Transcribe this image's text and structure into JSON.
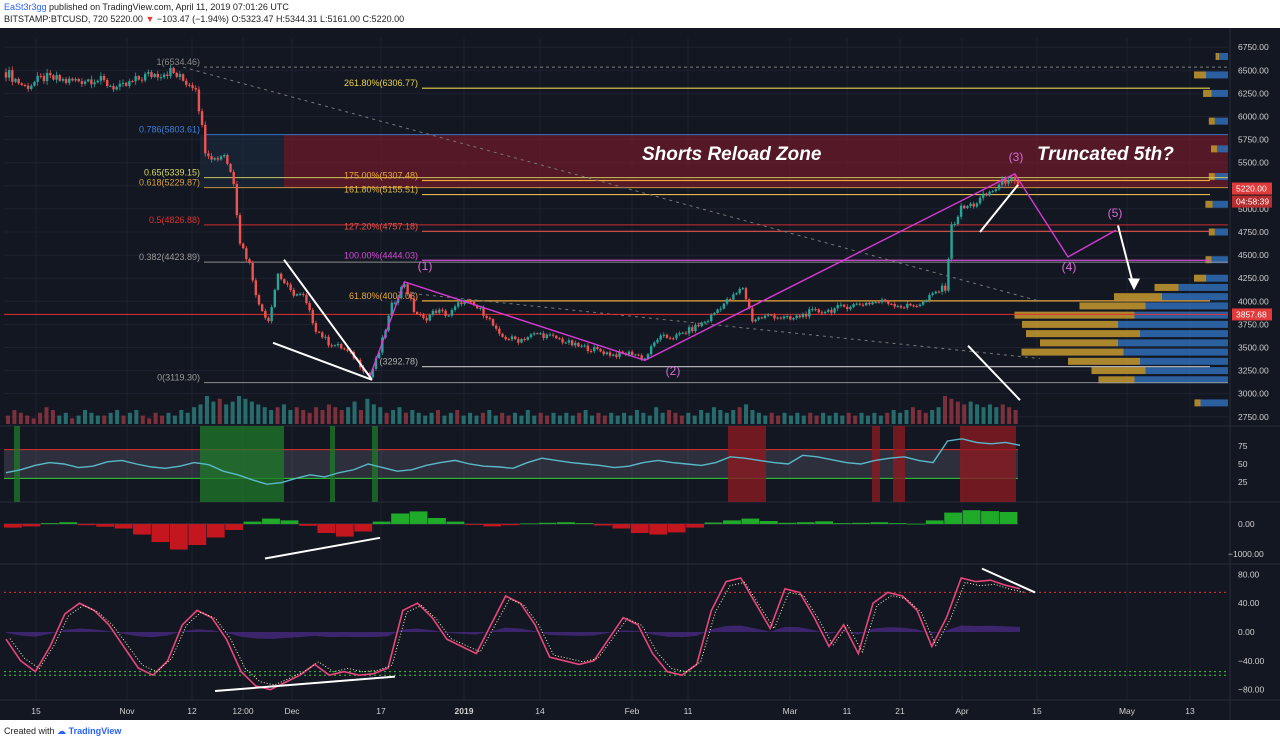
{
  "header": {
    "user": "EaSt3r3gg",
    "published": "published on TradingView.com, April 11, 2019 07:01:26 UTC",
    "symbol": "BITSTAMP:BTCUSD, 720",
    "last": "5220.00",
    "change": "−103.47 (−1.94%)",
    "ohlc": "O:5323.47 H:5344.31 L:5161.00 C:5220.00"
  },
  "footer": {
    "created_with": "Created with",
    "brand": "TradingView"
  },
  "chart_data": {
    "type": "line",
    "symbol": "BITSTAMP:BTCUSD",
    "timeframe": "720",
    "y_ticks": [
      2750,
      3000,
      3250,
      3500,
      3750,
      4000,
      4250,
      4500,
      4750,
      5000,
      5250,
      5500,
      5750,
      6000,
      6250,
      6500,
      6750
    ],
    "ylim": [
      2650,
      6850
    ],
    "x_ticks": [
      "15",
      "Nov",
      "12",
      "12:00",
      "Dec",
      "17",
      "2019",
      "14",
      "Feb",
      "11",
      "Mar",
      "11",
      "21",
      "Apr",
      "15",
      "May",
      "13"
    ],
    "price_labels": {
      "last": "5220.00",
      "countdown": "04:58:39",
      "level": "3857.68"
    },
    "price_path": [
      {
        "t": 0,
        "v": 6480
      },
      {
        "t": 3,
        "v": 6320
      },
      {
        "t": 6,
        "v": 6420
      },
      {
        "t": 10,
        "v": 6380
      },
      {
        "t": 14,
        "v": 6410
      },
      {
        "t": 18,
        "v": 6300
      },
      {
        "t": 22,
        "v": 6440
      },
      {
        "t": 26,
        "v": 6490
      },
      {
        "t": 28,
        "v": 6390
      },
      {
        "t": 30,
        "v": 6330
      },
      {
        "t": 31.5,
        "v": 5650
      },
      {
        "t": 33,
        "v": 5540
      },
      {
        "t": 34.5,
        "v": 5600
      },
      {
        "t": 36,
        "v": 5300
      },
      {
        "t": 37,
        "v": 4650
      },
      {
        "t": 38.5,
        "v": 4400
      },
      {
        "t": 40,
        "v": 3950
      },
      {
        "t": 41.5,
        "v": 3800
      },
      {
        "t": 43,
        "v": 4300
      },
      {
        "t": 45,
        "v": 4100
      },
      {
        "t": 47,
        "v": 4050
      },
      {
        "t": 49,
        "v": 3700
      },
      {
        "t": 51,
        "v": 3550
      },
      {
        "t": 53,
        "v": 3500
      },
      {
        "t": 55,
        "v": 3400
      },
      {
        "t": 57.5,
        "v": 3180
      },
      {
        "t": 59,
        "v": 3450
      },
      {
        "t": 61,
        "v": 3950
      },
      {
        "t": 63,
        "v": 4200
      },
      {
        "t": 64.5,
        "v": 3900
      },
      {
        "t": 66,
        "v": 3800
      },
      {
        "t": 68,
        "v": 3900
      },
      {
        "t": 70,
        "v": 3850
      },
      {
        "t": 72,
        "v": 4000
      },
      {
        "t": 74,
        "v": 3950
      },
      {
        "t": 76,
        "v": 3850
      },
      {
        "t": 78,
        "v": 3620
      },
      {
        "t": 81,
        "v": 3580
      },
      {
        "t": 84,
        "v": 3650
      },
      {
        "t": 87,
        "v": 3600
      },
      {
        "t": 90,
        "v": 3520
      },
      {
        "t": 93,
        "v": 3480
      },
      {
        "t": 96,
        "v": 3420
      },
      {
        "t": 99,
        "v": 3440
      },
      {
        "t": 101,
        "v": 3380
      },
      {
        "t": 103,
        "v": 3600
      },
      {
        "t": 106,
        "v": 3620
      },
      {
        "t": 109,
        "v": 3720
      },
      {
        "t": 111,
        "v": 3800
      },
      {
        "t": 113,
        "v": 3950
      },
      {
        "t": 115,
        "v": 4050
      },
      {
        "t": 116.5,
        "v": 4150
      },
      {
        "t": 118,
        "v": 3800
      },
      {
        "t": 121,
        "v": 3850
      },
      {
        "t": 124,
        "v": 3800
      },
      {
        "t": 127,
        "v": 3880
      },
      {
        "t": 130,
        "v": 3900
      },
      {
        "t": 133,
        "v": 3950
      },
      {
        "t": 136,
        "v": 3980
      },
      {
        "t": 139,
        "v": 4000
      },
      {
        "t": 142,
        "v": 3940
      },
      {
        "t": 145,
        "v": 3980
      },
      {
        "t": 147,
        "v": 4100
      },
      {
        "t": 148.5,
        "v": 4150
      },
      {
        "t": 149.5,
        "v": 4800
      },
      {
        "t": 151,
        "v": 5000
      },
      {
        "t": 153,
        "v": 5050
      },
      {
        "t": 155,
        "v": 5150
      },
      {
        "t": 157,
        "v": 5250
      },
      {
        "t": 158.5,
        "v": 5344
      },
      {
        "t": 160,
        "v": 5220
      }
    ],
    "volume": [
      0.3,
      0.5,
      0.4,
      0.3,
      0.2,
      0.4,
      0.6,
      0.5,
      0.3,
      0.4,
      0.2,
      0.3,
      0.5,
      0.4,
      0.3,
      0.3,
      0.4,
      0.5,
      0.3,
      0.4,
      0.5,
      0.3,
      0.2,
      0.4,
      0.3,
      0.4,
      0.3,
      0.5,
      0.4,
      0.6,
      0.7,
      1.0,
      0.8,
      0.9,
      0.7,
      0.8,
      1.0,
      0.9,
      0.8,
      0.7,
      0.6,
      0.5,
      0.6,
      0.7,
      0.5,
      0.6,
      0.5,
      0.4,
      0.6,
      0.5,
      0.7,
      0.6,
      0.5,
      0.6,
      0.8,
      0.5,
      0.9,
      0.7,
      0.6,
      0.4,
      0.5,
      0.6,
      0.4,
      0.5,
      0.4,
      0.3,
      0.4,
      0.5,
      0.3,
      0.4,
      0.5,
      0.3,
      0.4,
      0.3,
      0.4,
      0.5,
      0.3,
      0.4,
      0.3,
      0.4,
      0.3,
      0.5,
      0.3,
      0.4,
      0.3,
      0.4,
      0.3,
      0.4,
      0.3,
      0.4,
      0.5,
      0.3,
      0.4,
      0.3,
      0.4,
      0.3,
      0.4,
      0.3,
      0.5,
      0.4,
      0.3,
      0.6,
      0.4,
      0.5,
      0.4,
      0.3,
      0.4,
      0.3,
      0.5,
      0.4,
      0.6,
      0.5,
      0.4,
      0.5,
      0.6,
      0.7,
      0.5,
      0.4,
      0.3,
      0.4,
      0.3,
      0.4,
      0.3,
      0.4,
      0.3,
      0.4,
      0.3,
      0.4,
      0.3,
      0.4,
      0.3,
      0.4,
      0.3,
      0.4,
      0.3,
      0.4,
      0.3,
      0.4,
      0.5,
      0.4,
      0.5,
      0.6,
      0.5,
      0.4,
      0.5,
      0.6,
      1.0,
      0.9,
      0.8,
      0.7,
      0.8,
      0.7,
      0.6,
      0.7,
      0.6,
      0.7,
      0.6,
      0.5
    ],
    "fib_retracement_labels": [
      {
        "label": "1(6534.46)",
        "price": 6534.46
      },
      {
        "label": "0.786(5803.61)",
        "price": 5803.61
      },
      {
        "label": "0.65(5339.15)",
        "price": 5339.15
      },
      {
        "label": "0.618(5229.87)",
        "price": 5229.87
      },
      {
        "label": "0.5(4826.88)",
        "price": 4826.88
      },
      {
        "label": "0.382(4423.89)",
        "price": 4423.89
      },
      {
        "label": "0(3119.30)",
        "price": 3119.3
      }
    ],
    "fib_extension_labels": [
      {
        "label": "261.80%(6306.77)",
        "price": 6306.77
      },
      {
        "label": "175.00%(5307.48)",
        "price": 5307.48
      },
      {
        "label": "161.80%(5155.51)",
        "price": 5155.51
      },
      {
        "label": "127.20%(4757.18)",
        "price": 4757.18
      },
      {
        "label": "100.00%(4444.03)",
        "price": 4444.03
      },
      {
        "label": "61.80%(4004.05)",
        "price": 4004.05
      },
      {
        "label": "(3292.78)",
        "price": 3292.78
      }
    ],
    "annotations": {
      "zone_text": "Shorts  Reload Zone",
      "question_text": "Truncated 5th?",
      "waves": [
        "(1)",
        "(2)",
        "(3)",
        "(4)",
        "(5)"
      ]
    },
    "volume_profile": [
      {
        "p": 2900,
        "b": 0.25,
        "g": 0.05
      },
      {
        "p": 3150,
        "b": 0.85,
        "g": 0.3
      },
      {
        "p": 3250,
        "b": 0.75,
        "g": 0.45
      },
      {
        "p": 3350,
        "b": 0.8,
        "g": 0.6
      },
      {
        "p": 3450,
        "b": 0.95,
        "g": 0.85
      },
      {
        "p": 3550,
        "b": 1.0,
        "g": 0.65
      },
      {
        "p": 3650,
        "b": 0.8,
        "g": 0.95
      },
      {
        "p": 3750,
        "b": 1.0,
        "g": 0.8
      },
      {
        "p": 3850,
        "b": 0.85,
        "g": 1.0
      },
      {
        "p": 3950,
        "b": 0.75,
        "g": 0.55
      },
      {
        "p": 4050,
        "b": 0.6,
        "g": 0.4
      },
      {
        "p": 4150,
        "b": 0.45,
        "g": 0.2
      },
      {
        "p": 4250,
        "b": 0.2,
        "g": 0.1
      },
      {
        "p": 4450,
        "b": 0.15,
        "g": 0.05
      },
      {
        "p": 4750,
        "b": 0.12,
        "g": 0.05
      },
      {
        "p": 5050,
        "b": 0.14,
        "g": 0.06
      },
      {
        "p": 5350,
        "b": 0.12,
        "g": 0.05
      },
      {
        "p": 5650,
        "b": 0.1,
        "g": 0.05
      },
      {
        "p": 5950,
        "b": 0.12,
        "g": 0.05
      },
      {
        "p": 6250,
        "b": 0.15,
        "g": 0.07
      },
      {
        "p": 6450,
        "b": 0.2,
        "g": 0.1
      },
      {
        "p": 6650,
        "b": 0.08,
        "g": 0.03
      }
    ],
    "rsi": {
      "y_ticks": [
        "75",
        "50",
        "25"
      ],
      "values": [
        38,
        42,
        48,
        52,
        50,
        45,
        47,
        53,
        55,
        50,
        46,
        44,
        47,
        52,
        49,
        40,
        35,
        28,
        22,
        24,
        30,
        35,
        32,
        38,
        42,
        50,
        45,
        40,
        42,
        48,
        52,
        55,
        50,
        47,
        46,
        44,
        52,
        58,
        55,
        52,
        50,
        48,
        45,
        47,
        52,
        55,
        52,
        50,
        48,
        52,
        60,
        58,
        55,
        52,
        50,
        62,
        60,
        56,
        52,
        50,
        55,
        58,
        60,
        55,
        52,
        82,
        85,
        80,
        78,
        80,
        76
      ],
      "overbought": 70,
      "oversold": 30
    },
    "momentum": {
      "y_ticks": [
        "0.00",
        "−1000.00"
      ],
      "values": [
        -120,
        -80,
        30,
        60,
        -40,
        -90,
        -150,
        -350,
        -600,
        -850,
        -700,
        -450,
        -200,
        80,
        180,
        120,
        -60,
        -300,
        -420,
        -250,
        80,
        350,
        420,
        200,
        80,
        -30,
        -80,
        -40,
        20,
        40,
        60,
        30,
        -50,
        -150,
        -300,
        -350,
        -280,
        -120,
        50,
        120,
        180,
        100,
        40,
        60,
        90,
        30,
        40,
        60,
        30,
        10,
        120,
        380,
        460,
        430,
        400
      ]
    },
    "stoch": {
      "y_ticks": [
        "80.00",
        "40.00",
        "0.00",
        "−40.00",
        "−80.00"
      ],
      "values": [
        -10,
        -40,
        -55,
        -20,
        25,
        40,
        30,
        10,
        -20,
        -50,
        -60,
        -40,
        10,
        30,
        20,
        -10,
        -55,
        -75,
        -80,
        -70,
        -60,
        -45,
        -60,
        -55,
        -60,
        -58,
        -50,
        30,
        40,
        20,
        -10,
        -20,
        -30,
        10,
        50,
        40,
        10,
        -35,
        -40,
        -45,
        -40,
        -10,
        20,
        10,
        -30,
        -55,
        -60,
        -45,
        30,
        70,
        75,
        40,
        5,
        60,
        55,
        20,
        -20,
        10,
        -30,
        40,
        55,
        50,
        30,
        -20,
        20,
        75,
        70,
        72,
        65,
        60
      ],
      "overbought": 55,
      "oversold": -55
    }
  }
}
